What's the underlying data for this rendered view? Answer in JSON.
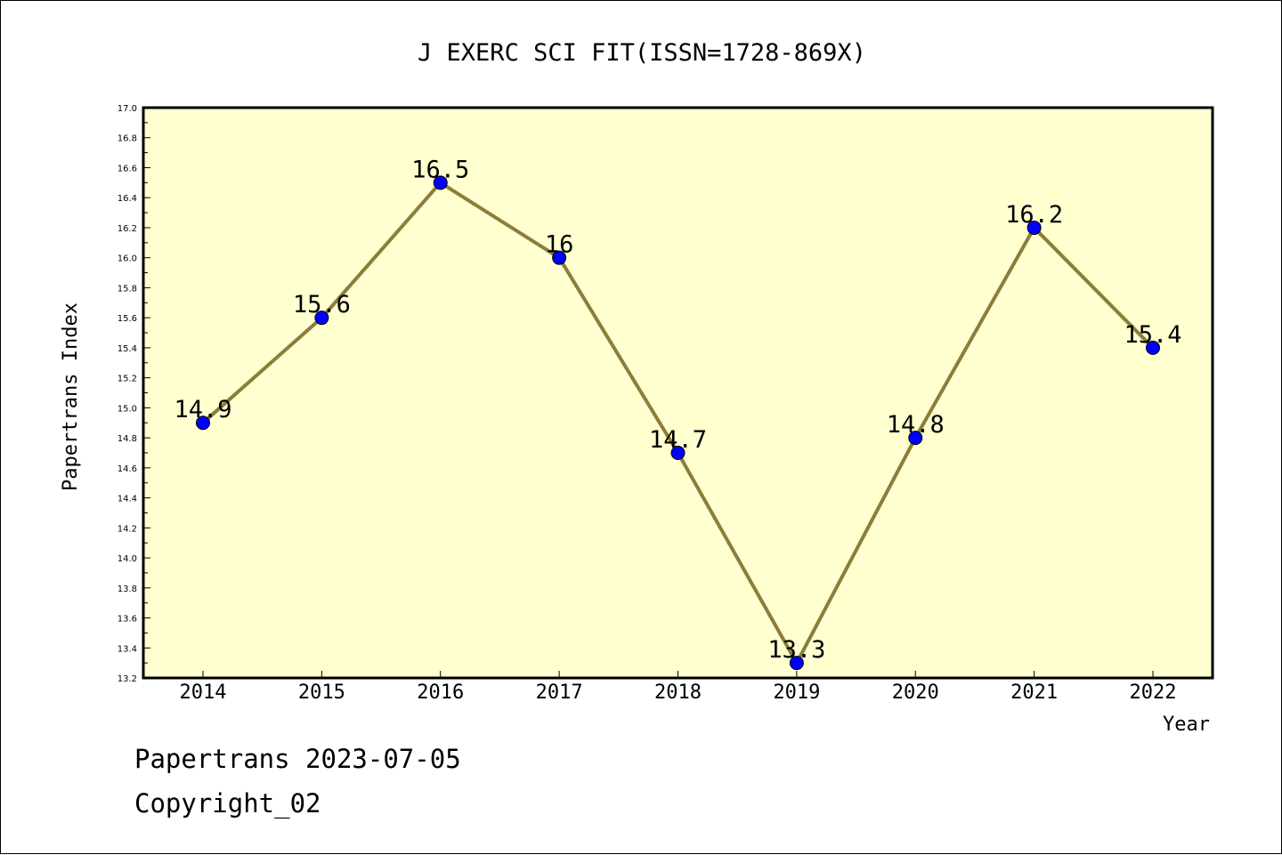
{
  "chart_data": {
    "type": "line",
    "title": "J EXERC SCI FIT(ISSN=1728-869X)",
    "xlabel": "Year",
    "ylabel": "Papertrans Index",
    "categories": [
      "2014",
      "2015",
      "2016",
      "2017",
      "2018",
      "2019",
      "2020",
      "2021",
      "2022"
    ],
    "values": [
      14.9,
      15.6,
      16.5,
      16,
      14.7,
      13.3,
      14.8,
      16.2,
      15.4
    ],
    "data_labels": [
      "14.9",
      "15.6",
      "16.5",
      "16",
      "14.7",
      "13.3",
      "14.8",
      "16.2",
      "15.4"
    ],
    "ylim": [
      13.2,
      17.0
    ],
    "yticks": [
      "13.2",
      "13.4",
      "13.6",
      "13.8",
      "14.0",
      "14.2",
      "14.4",
      "14.6",
      "14.8",
      "15.0",
      "15.2",
      "15.4",
      "15.6",
      "15.8",
      "16.0",
      "16.2",
      "16.4",
      "16.6",
      "16.8",
      "17.0"
    ],
    "grid": false,
    "colors": {
      "plot_background": "#ffffd0",
      "line": "#8b7d3a",
      "marker": "#0000ff"
    }
  },
  "footer": {
    "line1": "Papertrans 2023-07-05",
    "line2": "Copyright_02"
  }
}
